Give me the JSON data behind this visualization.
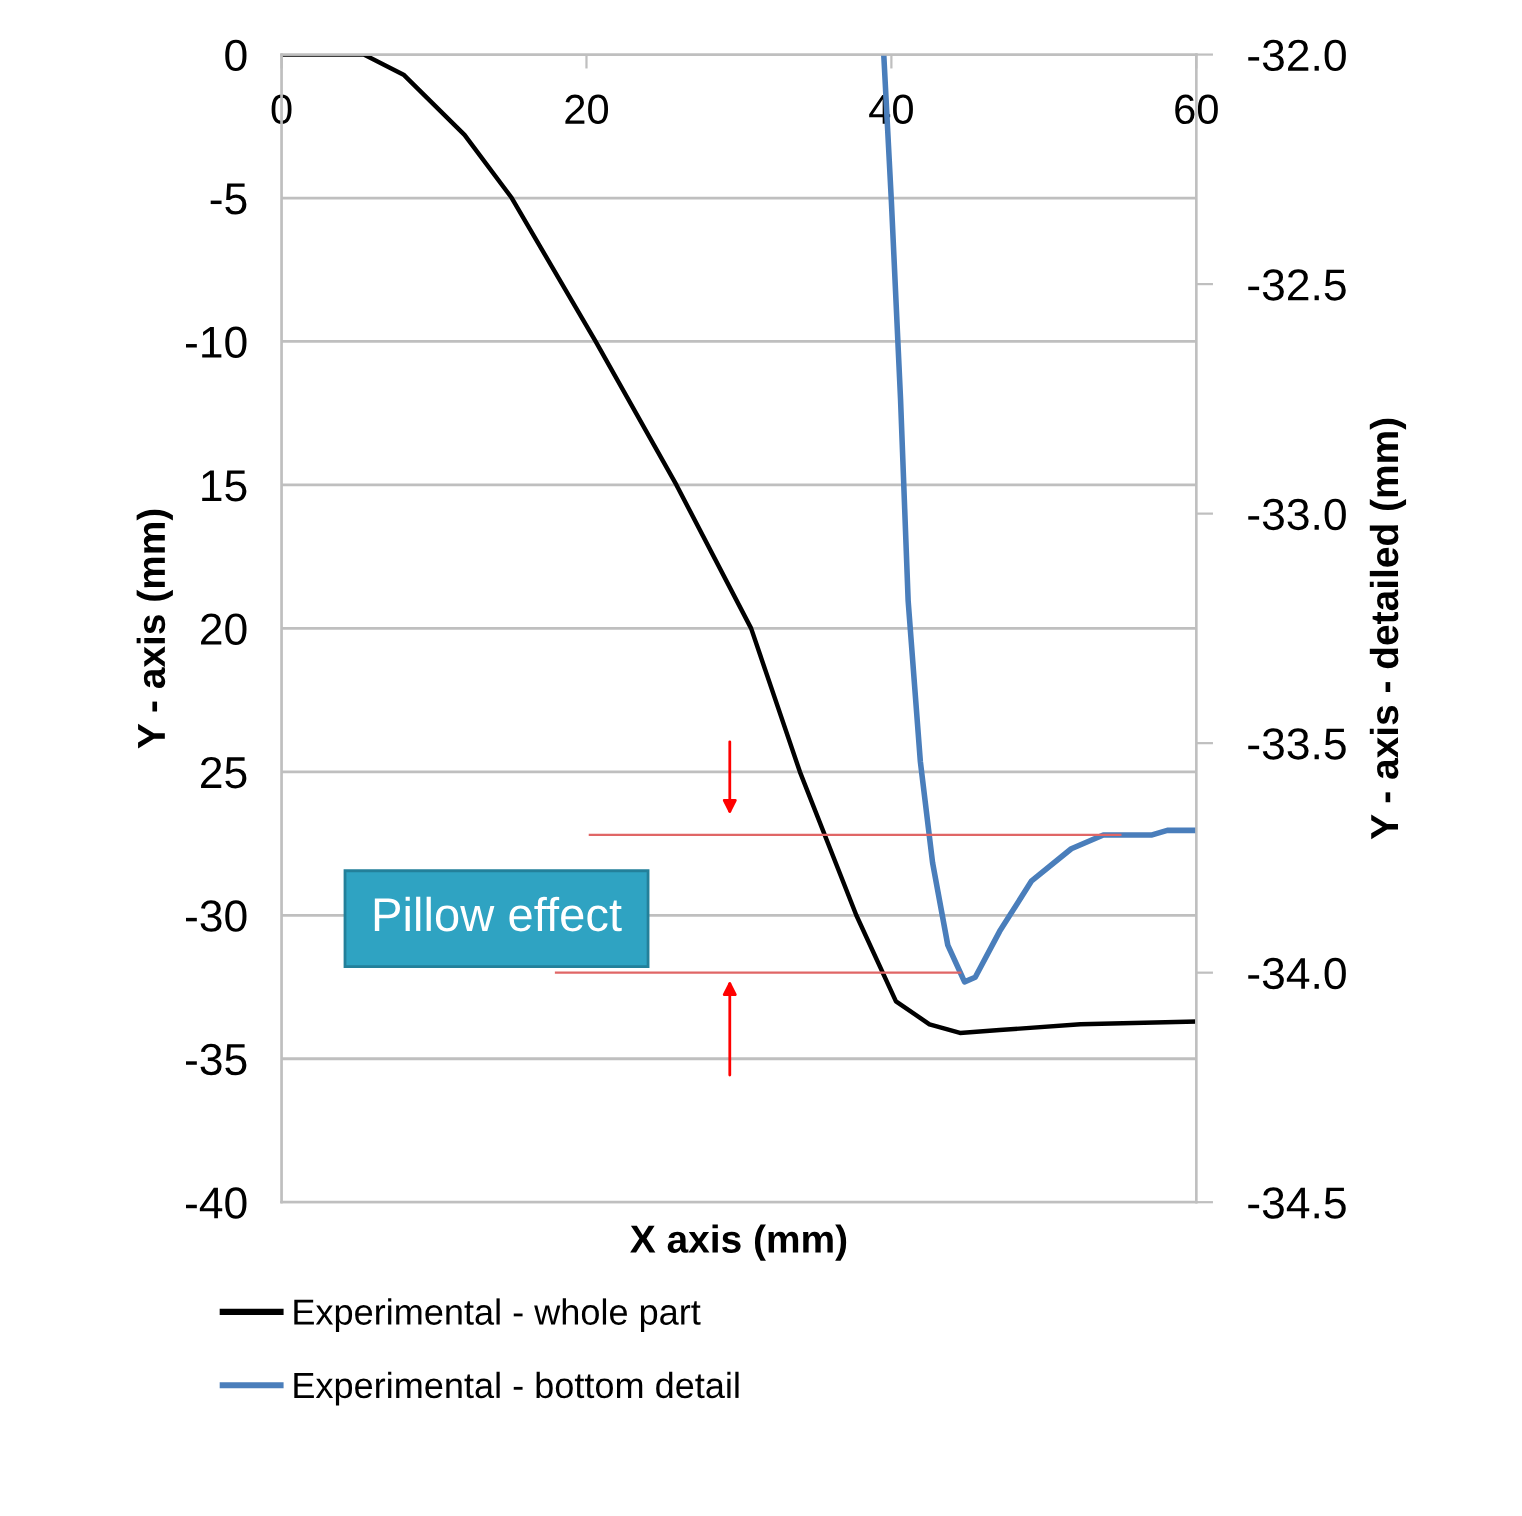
{
  "chart_data": {
    "type": "line",
    "xlabel": "X axis (mm)",
    "ylabel": "Y - axis (mm)",
    "y2label": "Y - axis - detailed (mm)",
    "xlim": [
      0,
      60
    ],
    "xticks": [
      0,
      20,
      40,
      60
    ],
    "ylim": [
      -40,
      0
    ],
    "yticks": [
      0,
      -5,
      -10,
      {
        "value": -15,
        "label": "15"
      },
      {
        "value": -20,
        "label": "20"
      },
      {
        "value": -25,
        "label": "25"
      },
      -30,
      -35,
      -40
    ],
    "y2lim": [
      -34.5,
      -32.0
    ],
    "y2ticks": [
      {
        "value": -32.0,
        "label": "-32.0"
      },
      -32.5,
      {
        "value": -33.0,
        "label": "-33.0"
      },
      -33.5,
      {
        "value": -34.0,
        "label": "-34.0"
      },
      -34.5
    ],
    "grid": "y",
    "legend": "bottom",
    "line_style": "solid",
    "marker": "none",
    "annotations": [
      "Pillow effect"
    ],
    "ref_lines": [
      {
        "axis": "y2",
        "value": -33.7,
        "color": "#e06666"
      },
      {
        "axis": "y2",
        "value": -34.0,
        "color": "#e06666"
      }
    ],
    "series": [
      {
        "name": "Experimental - whole part",
        "color": "#000000",
        "x": [
          0,
          5.4,
          8,
          12,
          15.1,
          20.6,
          25.9,
          30.8,
          34.0,
          37.7,
          40.3,
          42.5,
          44.5,
          47.1,
          52.4,
          60
        ],
        "values": [
          0,
          0,
          -0.7,
          -2.8,
          -5,
          -10,
          -15,
          -20,
          -25,
          -30,
          -33,
          -33.8,
          -34.1,
          -34.0,
          -33.8,
          -33.7
        ]
      },
      {
        "name": "Experimental - bottom detail",
        "color": "#4a7ebb",
        "axis": "y2",
        "x": [
          39.5,
          40.0,
          40.6,
          41.1,
          41.9,
          42.7,
          43.7,
          44.8,
          45.5,
          47.1,
          49.2,
          51.8,
          53.9,
          57.1,
          58.1,
          60
        ],
        "values": [
          -32.0,
          -32.32,
          -32.75,
          -33.19,
          -33.54,
          -33.76,
          -33.94,
          -34.02,
          -34.01,
          -33.91,
          -33.8,
          -33.73,
          -33.7,
          -33.7,
          -33.69,
          -33.69
        ]
      }
    ]
  }
}
